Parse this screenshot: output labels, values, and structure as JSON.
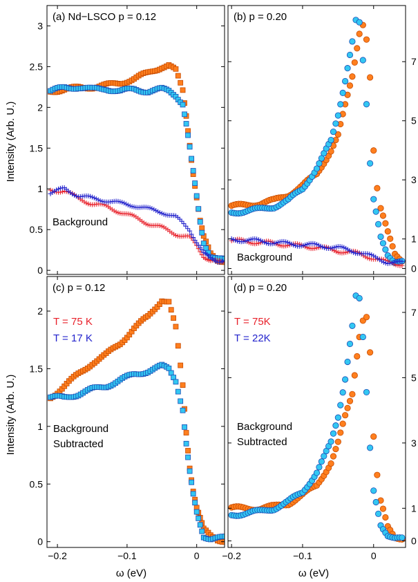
{
  "figure": {
    "ylabel": "Intensity (Arb. U.)",
    "xlabel": "ω (eV)"
  },
  "colors": {
    "orange_fill": "#ff7f1e",
    "orange_edge": "#c64a00",
    "cyan_fill": "#33c7f2",
    "cyan_edge": "#1a4bb5",
    "red": "#e8202a",
    "blue": "#2222cc"
  },
  "chart_data": [
    {
      "panel": "a",
      "type": "scatter",
      "title": "(a) Nd−LSCO p = 0.12",
      "annotation": "Background",
      "xlim": [
        -0.215,
        0.04
      ],
      "ylim": [
        -0.05,
        3.25
      ],
      "xticks": [
        -0.2,
        -0.1,
        0
      ],
      "yticks": [
        0,
        0.5,
        1,
        1.5,
        2,
        2.5,
        3
      ],
      "ytick_labels": [
        "0",
        "0.5",
        "1",
        "1.5",
        "2",
        "2.5",
        "3"
      ],
      "series": [
        {
          "marker": "square",
          "color": "orange",
          "x": [
            -0.21,
            -0.19,
            -0.17,
            -0.15,
            -0.13,
            -0.11,
            -0.09,
            -0.07,
            -0.05,
            -0.04,
            -0.03,
            -0.02,
            -0.015,
            -0.01,
            -0.005,
            0,
            0.005,
            0.01,
            0.02,
            0.03,
            0.04
          ],
          "y": [
            2.2,
            2.22,
            2.24,
            2.25,
            2.27,
            2.3,
            2.35,
            2.42,
            2.5,
            2.52,
            2.45,
            2.2,
            1.9,
            1.55,
            1.2,
            0.9,
            0.6,
            0.4,
            0.2,
            0.13,
            0.12
          ]
        },
        {
          "marker": "square",
          "color": "cyan",
          "x": [
            -0.21,
            -0.19,
            -0.17,
            -0.15,
            -0.13,
            -0.11,
            -0.09,
            -0.07,
            -0.05,
            -0.04,
            -0.03,
            -0.02,
            -0.015,
            -0.01,
            -0.005,
            0,
            0.005,
            0.01,
            0.02,
            0.03,
            0.04
          ],
          "y": [
            2.2,
            2.24,
            2.25,
            2.22,
            2.23,
            2.2,
            2.22,
            2.2,
            2.22,
            2.2,
            2.15,
            2.05,
            1.8,
            1.5,
            1.2,
            0.9,
            0.6,
            0.35,
            0.18,
            0.14,
            0.12
          ]
        },
        {
          "marker": "plus",
          "color": "red",
          "x": [
            -0.21,
            -0.19,
            -0.17,
            -0.15,
            -0.13,
            -0.11,
            -0.09,
            -0.07,
            -0.05,
            -0.03,
            -0.01,
            0,
            0.01,
            0.02,
            0.03,
            0.04
          ],
          "y": [
            0.98,
            0.98,
            0.88,
            0.82,
            0.78,
            0.72,
            0.65,
            0.58,
            0.52,
            0.45,
            0.4,
            0.3,
            0.18,
            0.12,
            0.1,
            0.1
          ]
        },
        {
          "marker": "plus",
          "color": "blue",
          "x": [
            -0.21,
            -0.19,
            -0.17,
            -0.15,
            -0.13,
            -0.11,
            -0.09,
            -0.07,
            -0.05,
            -0.03,
            -0.01,
            0,
            0.01,
            0.02,
            0.03,
            0.04
          ],
          "y": [
            0.95,
            1.0,
            0.92,
            0.88,
            0.86,
            0.82,
            0.8,
            0.75,
            0.72,
            0.65,
            0.5,
            0.35,
            0.2,
            0.15,
            0.12,
            0.12
          ]
        }
      ]
    },
    {
      "panel": "b",
      "type": "scatter",
      "title": "(b) p = 0.20",
      "annotation": "Background",
      "xlim": [
        -0.205,
        0.045
      ],
      "ylim": [
        -0.2,
        8.9
      ],
      "xticks": [
        -0.2,
        -0.1,
        0
      ],
      "yticks": [
        0,
        1,
        3,
        5,
        7
      ],
      "ytick_labels": [
        "0",
        "1",
        "3",
        "5",
        "7"
      ],
      "series": [
        {
          "marker": "circle",
          "color": "orange",
          "x": [
            -0.2,
            -0.18,
            -0.16,
            -0.14,
            -0.12,
            -0.1,
            -0.08,
            -0.06,
            -0.05,
            -0.04,
            -0.03,
            -0.02,
            -0.015,
            -0.01,
            -0.005,
            0,
            0.005,
            0.01,
            0.02,
            0.03,
            0.04
          ],
          "y": [
            2.1,
            2.15,
            2.2,
            2.3,
            2.5,
            2.8,
            3.2,
            4.0,
            4.5,
            5.5,
            6.5,
            8.0,
            8.3,
            7.8,
            6.5,
            4.0,
            2.7,
            2.0,
            1.2,
            0.5,
            0.3
          ]
        },
        {
          "marker": "circle",
          "color": "cyan",
          "x": [
            -0.2,
            -0.18,
            -0.16,
            -0.14,
            -0.12,
            -0.1,
            -0.08,
            -0.06,
            -0.05,
            -0.04,
            -0.03,
            -0.025,
            -0.02,
            -0.015,
            -0.01,
            -0.005,
            0,
            0.01,
            0.02,
            0.03,
            0.04
          ],
          "y": [
            1.9,
            1.95,
            2.0,
            2.1,
            2.3,
            2.7,
            3.4,
            4.3,
            5.2,
            6.4,
            7.7,
            8.4,
            8.3,
            7.0,
            5.5,
            3.5,
            2.3,
            1.1,
            0.5,
            0.2,
            0.2
          ]
        },
        {
          "marker": "plus",
          "color": "red",
          "x": [
            -0.2,
            -0.17,
            -0.14,
            -0.11,
            -0.08,
            -0.05,
            -0.02,
            0,
            0.02,
            0.04
          ],
          "y": [
            0.95,
            0.9,
            0.85,
            0.78,
            0.72,
            0.6,
            0.5,
            0.35,
            0.2,
            0.15
          ]
        },
        {
          "marker": "plus",
          "color": "blue",
          "x": [
            -0.2,
            -0.17,
            -0.14,
            -0.11,
            -0.08,
            -0.05,
            -0.02,
            0,
            0.02,
            0.04
          ],
          "y": [
            0.98,
            0.95,
            0.88,
            0.82,
            0.78,
            0.7,
            0.55,
            0.38,
            0.22,
            0.18
          ]
        }
      ]
    },
    {
      "panel": "c",
      "type": "scatter",
      "title": "(c) p = 0.12",
      "legend": [
        {
          "label": "T = 75 K",
          "color": "red"
        },
        {
          "label": "T = 17 K",
          "color": "blue"
        }
      ],
      "annotation": [
        "Background",
        "Subtracted"
      ],
      "xlim": [
        -0.215,
        0.04
      ],
      "ylim": [
        -0.05,
        2.3
      ],
      "xticks": [
        -0.2,
        -0.1,
        0
      ],
      "xtick_labels": [
        "−0.2",
        "−0.1",
        "0"
      ],
      "yticks": [
        0,
        0.5,
        1,
        1.5,
        2
      ],
      "ytick_labels": [
        "0",
        "0.5",
        "1",
        "1.5",
        "2"
      ],
      "series": [
        {
          "marker": "square",
          "color": "orange",
          "x": [
            -0.21,
            -0.19,
            -0.17,
            -0.15,
            -0.13,
            -0.11,
            -0.09,
            -0.07,
            -0.05,
            -0.04,
            -0.03,
            -0.02,
            -0.015,
            -0.01,
            -0.005,
            0,
            0.005,
            0.01,
            0.02,
            0.03,
            0.04
          ],
          "y": [
            1.25,
            1.35,
            1.45,
            1.55,
            1.62,
            1.72,
            1.85,
            1.95,
            2.1,
            2.08,
            1.85,
            1.35,
            0.95,
            0.65,
            0.45,
            0.3,
            0.2,
            0.1,
            0.05,
            0.02,
            0.01
          ]
        },
        {
          "marker": "square",
          "color": "cyan",
          "x": [
            -0.21,
            -0.19,
            -0.17,
            -0.15,
            -0.13,
            -0.11,
            -0.09,
            -0.07,
            -0.05,
            -0.04,
            -0.03,
            -0.02,
            -0.015,
            -0.01,
            -0.005,
            0,
            0.005,
            0.01,
            0.02,
            0.03,
            0.04
          ],
          "y": [
            1.25,
            1.25,
            1.28,
            1.32,
            1.35,
            1.4,
            1.45,
            1.48,
            1.52,
            1.5,
            1.4,
            1.15,
            0.85,
            0.6,
            0.4,
            0.25,
            0.15,
            0.05,
            0.03,
            0.03,
            0.03
          ]
        }
      ]
    },
    {
      "panel": "d",
      "type": "scatter",
      "title": "(d) p = 0.20",
      "legend": [
        {
          "label": "T = 75K",
          "color": "red"
        },
        {
          "label": "T = 22K",
          "color": "blue"
        }
      ],
      "annotation": [
        "Background",
        "Subtracted"
      ],
      "xlim": [
        -0.205,
        0.045
      ],
      "ylim": [
        -0.2,
        8.1
      ],
      "xticks": [
        -0.2,
        -0.1,
        0
      ],
      "xtick_labels": [
        "−0.2",
        "−0.1",
        "0"
      ],
      "yticks": [
        0,
        1,
        3,
        5,
        7
      ],
      "ytick_labels": [
        "0",
        "1",
        "3",
        "5",
        "7"
      ],
      "series": [
        {
          "marker": "circle",
          "color": "orange",
          "x": [
            -0.2,
            -0.18,
            -0.16,
            -0.14,
            -0.12,
            -0.1,
            -0.08,
            -0.06,
            -0.05,
            -0.04,
            -0.03,
            -0.02,
            -0.015,
            -0.01,
            -0.005,
            0,
            0.005,
            0.01,
            0.02,
            0.03,
            0.04
          ],
          "y": [
            1.0,
            1.0,
            1.0,
            1.05,
            1.15,
            1.4,
            1.7,
            2.4,
            3.0,
            3.8,
            4.5,
            6.3,
            6.8,
            6.9,
            5.8,
            3.2,
            2.0,
            1.2,
            0.4,
            0.1,
            0.1
          ]
        },
        {
          "marker": "circle",
          "color": "cyan",
          "x": [
            -0.2,
            -0.18,
            -0.16,
            -0.14,
            -0.12,
            -0.1,
            -0.08,
            -0.06,
            -0.05,
            -0.04,
            -0.03,
            -0.025,
            -0.02,
            -0.015,
            -0.01,
            -0.005,
            0,
            0.01,
            0.02,
            0.03,
            0.04
          ],
          "y": [
            0.8,
            0.85,
            0.9,
            1.0,
            1.2,
            1.5,
            2.1,
            3.0,
            3.8,
            5.0,
            6.6,
            7.5,
            7.4,
            6.2,
            4.5,
            2.8,
            1.5,
            0.5,
            0.2,
            0.1,
            0.05
          ]
        }
      ]
    }
  ]
}
